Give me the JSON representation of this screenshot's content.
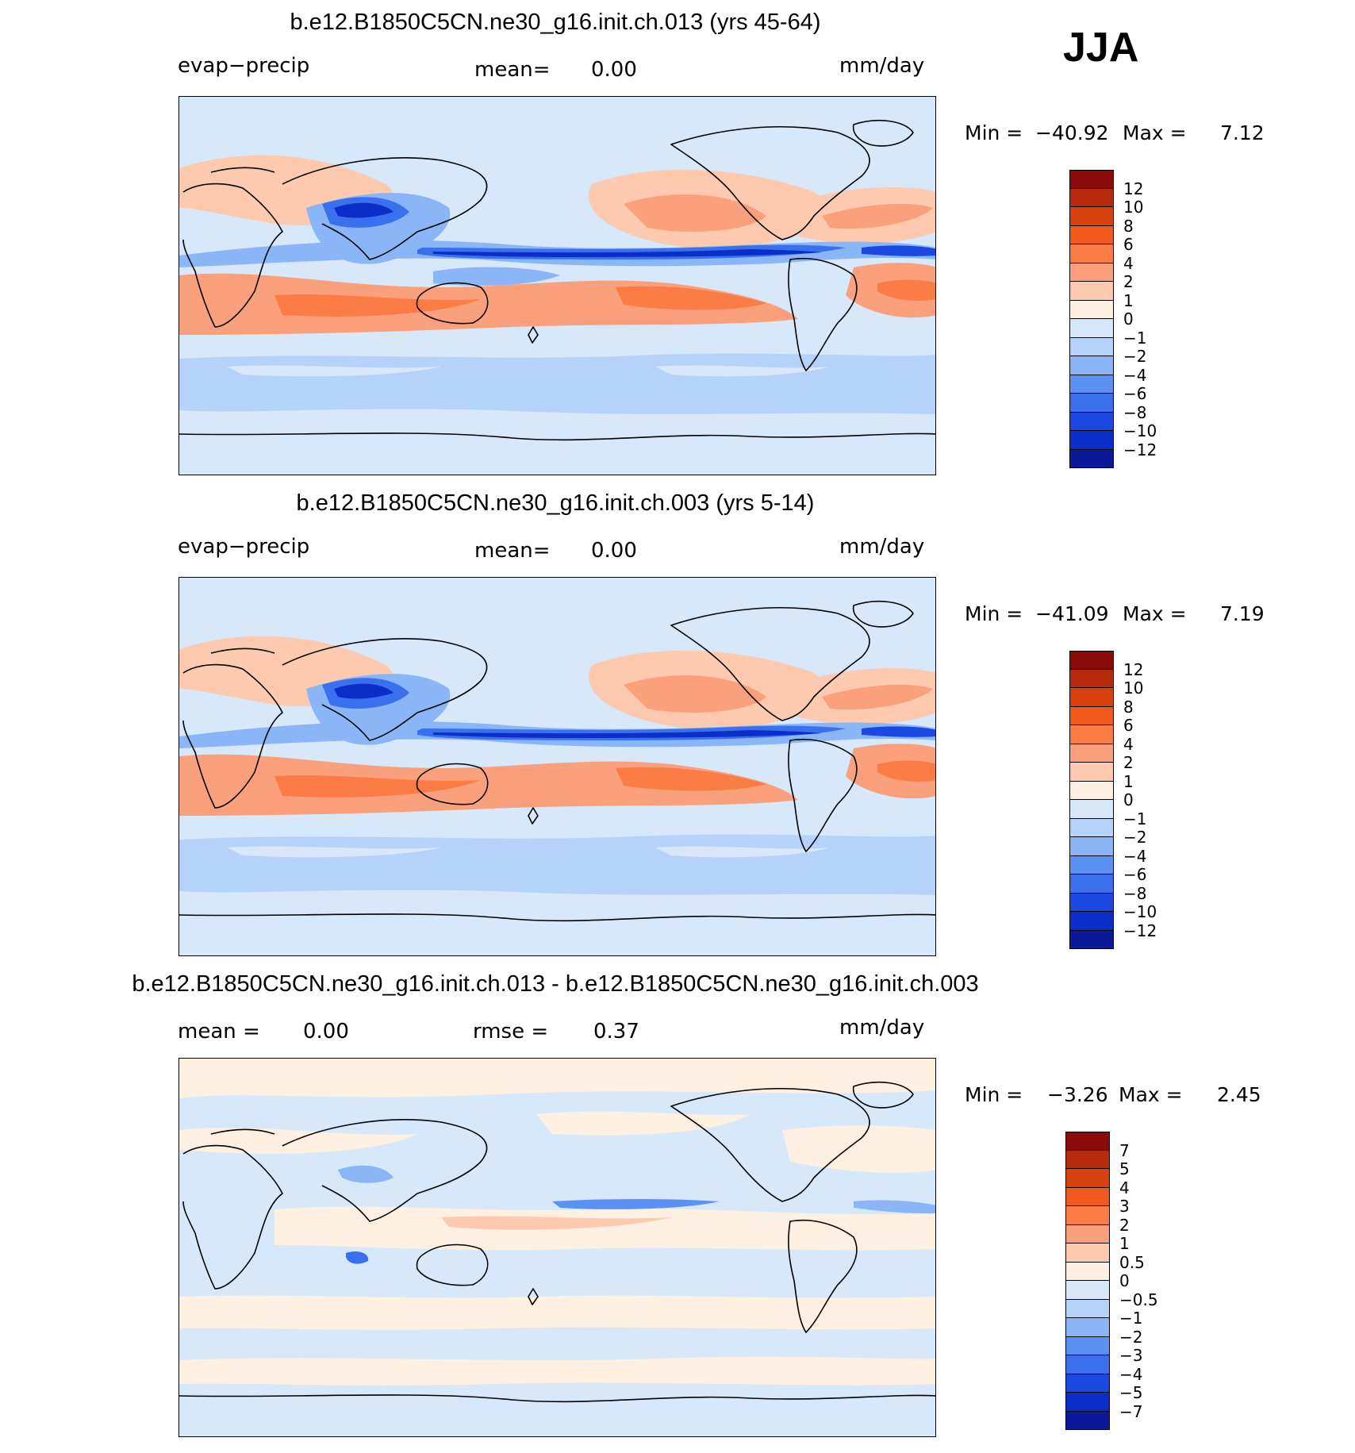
{
  "season": "JJA",
  "panels": [
    {
      "title": "b.e12.B1850C5CN.ne30_g16.init.ch.013 (yrs 45-64)",
      "left_label": "evap−precip",
      "mid_label": "mean=",
      "mid_value": "0.00",
      "units": "mm/day",
      "min_label": "Min  =",
      "min_value": "−40.92",
      "max_label": "Max  =",
      "max_value": "7.12",
      "variant": "abs"
    },
    {
      "title": "b.e12.B1850C5CN.ne30_g16.init.ch.003 (yrs 5-14)",
      "left_label": "evap−precip",
      "mid_label": "mean=",
      "mid_value": "0.00",
      "units": "mm/day",
      "min_label": "Min  =",
      "min_value": "−41.09",
      "max_label": "Max  =",
      "max_value": "7.19",
      "variant": "abs"
    },
    {
      "title": "b.e12.B1850C5CN.ne30_g16.init.ch.013 - b.e12.B1850C5CN.ne30_g16.init.ch.003",
      "left_label": "mean =",
      "left_value": "0.00",
      "mid_label": "rmse =",
      "mid_value": "0.37",
      "units": "mm/day",
      "min_label": "Min  =",
      "min_value": "−3.26",
      "max_label": "Max  =",
      "max_value": "2.45",
      "variant": "diff"
    }
  ],
  "colorbar_abs": {
    "colors": [
      "#8b0b0b",
      "#b82a0c",
      "#d8400c",
      "#f05a1c",
      "#fb7c44",
      "#fba07c",
      "#fdcab0",
      "#fdf0e0",
      "#d6e8fa",
      "#b4d2fa",
      "#8ab6f7",
      "#5a93f4",
      "#3a70ee",
      "#1a48e0",
      "#0b2ec8",
      "#0a1a98"
    ],
    "ticks": [
      "12",
      "10",
      "8",
      "6",
      "4",
      "2",
      "1",
      "0",
      "−1",
      "−2",
      "−4",
      "−6",
      "−8",
      "−10",
      "−12"
    ]
  },
  "colorbar_diff": {
    "colors": [
      "#8b0b0b",
      "#b82a0c",
      "#d8400c",
      "#f05a1c",
      "#fb7c44",
      "#fba07c",
      "#fdcab0",
      "#fdf0e0",
      "#d6e8fa",
      "#b4d2fa",
      "#8ab6f7",
      "#5a93f4",
      "#3a70ee",
      "#1a48e0",
      "#0b2ec8",
      "#0a1a98"
    ],
    "ticks": [
      "7",
      "5",
      "4",
      "3",
      "2",
      "1",
      "0.5",
      "0",
      "−0.5",
      "−1",
      "−2",
      "−3",
      "−4",
      "−5",
      "−7"
    ]
  }
}
